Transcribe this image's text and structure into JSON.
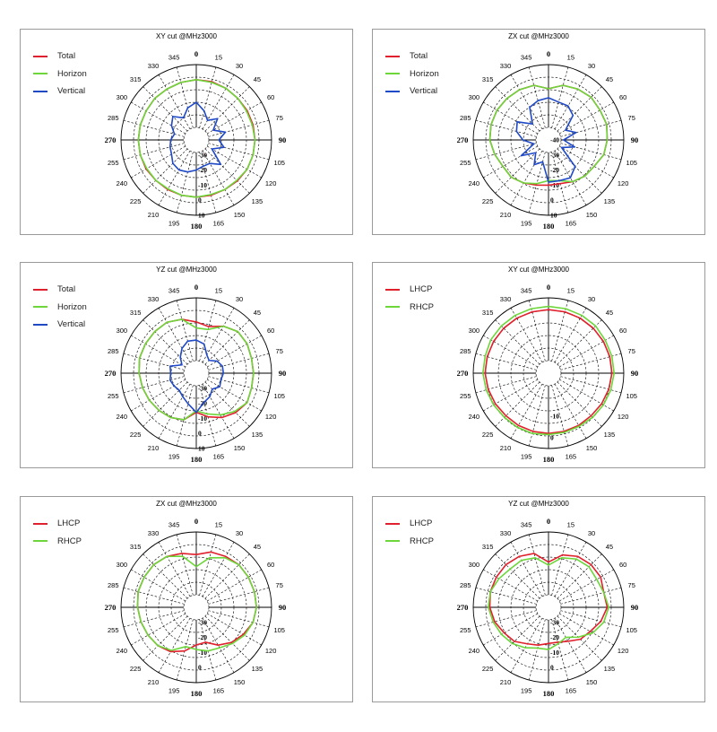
{
  "colors": {
    "Total": "#e0202c",
    "Horizon": "#6cd63a",
    "Vertical": "#1f49c6",
    "LHCP": "#e0202c",
    "RHCP": "#6cd63a"
  },
  "angle_labels": [
    "0",
    "15",
    "30",
    "45",
    "60",
    "75",
    "90",
    "105",
    "120",
    "135",
    "150",
    "165",
    "180",
    "195",
    "210",
    "225",
    "240",
    "255",
    "270",
    "285",
    "300",
    "315",
    "330",
    "345"
  ],
  "chart_data": [
    {
      "type": "polar-line",
      "title": "XY cut @MHz3000",
      "radial_ticks": [
        "-30",
        "-20",
        "-10",
        "0",
        "10"
      ],
      "rlim": [
        -40,
        10
      ],
      "angles": [
        0,
        15,
        30,
        45,
        60,
        75,
        90,
        105,
        120,
        135,
        150,
        165,
        180,
        195,
        210,
        225,
        240,
        255,
        270,
        285,
        300,
        315,
        330,
        345
      ],
      "series": [
        {
          "name": "Total",
          "values": [
            0,
            0,
            -0.5,
            -1,
            -1,
            -1,
            -1,
            -1,
            -1,
            -1.5,
            -2,
            -2,
            -2,
            -2,
            -2,
            -2,
            -1.5,
            -1.5,
            -1.5,
            -1.5,
            -1.5,
            -1,
            -1,
            -0.5
          ]
        },
        {
          "name": "Horizon",
          "values": [
            0,
            -0.5,
            -0.5,
            -1,
            -1.5,
            -1.5,
            -1,
            -1,
            -1,
            -2,
            -2,
            -2.5,
            -2,
            -2,
            -2.5,
            -2,
            -2,
            -1.5,
            -1.5,
            -1.5,
            -1.5,
            -1,
            -1,
            -0.5
          ]
        },
        {
          "name": "Vertical",
          "values": [
            -15,
            -20,
            -25,
            -20,
            -27,
            -20,
            -25,
            -21,
            -28,
            -17,
            -22,
            -22,
            -20,
            -18,
            -17,
            -18,
            -21,
            -22,
            -23,
            -25,
            -21,
            -18,
            -23,
            -18
          ]
        }
      ]
    },
    {
      "type": "polar-line",
      "title": "ZX cut @MHz3000",
      "radial_ticks": [
        "-40",
        "-30",
        "-20",
        "-10",
        "0",
        "10"
      ],
      "rlim": [
        -40,
        10
      ],
      "angles": [
        0,
        15,
        30,
        45,
        60,
        75,
        90,
        105,
        120,
        135,
        150,
        165,
        180,
        195,
        210,
        225,
        240,
        255,
        270,
        285,
        300,
        315,
        330,
        345
      ],
      "series": [
        {
          "name": "Total",
          "values": [
            -6,
            -2.5,
            -1,
            0,
            -0.5,
            0,
            -1,
            -2,
            -5,
            -6,
            -8,
            -10,
            -10,
            -9,
            -7,
            -5,
            -5,
            -3,
            -1,
            -0.5,
            -0.5,
            -1,
            -1.5,
            -2.5
          ]
        },
        {
          "name": "Horizon",
          "values": [
            -6,
            -2.5,
            -1,
            0,
            -0.5,
            0,
            -1,
            -2,
            -5,
            -6,
            -8,
            -12,
            -13,
            -10,
            -7,
            -5,
            -5,
            -3,
            -1,
            -0.5,
            -0.5,
            -1,
            -1.5,
            -2.5
          ]
        },
        {
          "name": "Vertical",
          "values": [
            -12,
            -14,
            -14,
            -17,
            -27,
            -21,
            -30,
            -22,
            -30,
            -15,
            -11,
            -12,
            -12,
            -25,
            -21,
            -28,
            -19,
            -30,
            -23,
            -18,
            -16,
            -25,
            -15,
            -13
          ]
        }
      ]
    },
    {
      "type": "polar-line",
      "title": "YZ cut @MHz3000",
      "radial_ticks": [
        "-30",
        "-20",
        "-10",
        "0",
        "10"
      ],
      "rlim": [
        -40,
        10
      ],
      "angles": [
        0,
        15,
        30,
        45,
        60,
        75,
        90,
        105,
        120,
        135,
        150,
        165,
        180,
        195,
        210,
        225,
        240,
        255,
        270,
        285,
        300,
        315,
        330,
        345
      ],
      "series": [
        {
          "name": "Total",
          "values": [
            -6,
            -8,
            -4,
            -1,
            -1,
            -2,
            -2,
            -2,
            -1,
            -3,
            -6,
            -10,
            -14,
            -8,
            -6,
            -5,
            -4,
            -3,
            -2,
            -1,
            -1,
            -1,
            -1,
            -3
          ]
        },
        {
          "name": "Horizon",
          "values": [
            -10,
            -10,
            -4,
            -1,
            -1,
            -2,
            -2,
            -2,
            -1,
            -4,
            -8,
            -12,
            -15,
            -8,
            -6,
            -5,
            -4,
            -3,
            -2,
            -1,
            -1,
            -1,
            -1,
            -3
          ]
        },
        {
          "name": "Vertical",
          "values": [
            -18,
            -20,
            -26,
            -28,
            -24,
            -22,
            -22,
            -23,
            -22,
            -25,
            -22,
            -20,
            -14,
            -19,
            -22,
            -24,
            -23,
            -22,
            -23,
            -22,
            -29,
            -25,
            -21,
            -18
          ]
        }
      ]
    },
    {
      "type": "polar-line",
      "title": "XY cut @MHz3000",
      "radial_ticks": [
        "-10",
        "0"
      ],
      "rlim": [
        -30,
        5
      ],
      "angles": [
        0,
        15,
        30,
        45,
        60,
        75,
        90,
        105,
        120,
        135,
        150,
        165,
        180,
        195,
        210,
        225,
        240,
        255,
        270,
        285,
        300,
        315,
        330,
        345
      ],
      "series": [
        {
          "name": "LHCP",
          "values": [
            -0.5,
            -0.5,
            -0.5,
            -0.5,
            -0.5,
            -0.5,
            -0.5,
            -1,
            -1.5,
            -2,
            -2,
            -2,
            -2,
            -2,
            -2,
            -2,
            -1.5,
            -1,
            -0.5,
            -0.5,
            -0.5,
            -0.5,
            -0.5,
            -0.5
          ]
        },
        {
          "name": "RHCP",
          "values": [
            1,
            1,
            1,
            1,
            0.5,
            0.5,
            0.5,
            0,
            -0.5,
            -1,
            -1.5,
            -1.5,
            -1.5,
            -1,
            -1,
            -1,
            -0.5,
            0,
            0.5,
            0.5,
            1,
            1,
            1,
            1
          ]
        }
      ]
    },
    {
      "type": "polar-line",
      "title": "ZX cut @MHz3000",
      "radial_ticks": [
        "-30",
        "-20",
        "-10",
        "0"
      ],
      "rlim": [
        -40,
        10
      ],
      "angles": [
        0,
        15,
        30,
        45,
        60,
        75,
        90,
        105,
        120,
        135,
        150,
        165,
        180,
        195,
        210,
        225,
        240,
        255,
        270,
        285,
        300,
        315,
        330,
        345
      ],
      "series": [
        {
          "name": "LHCP",
          "values": [
            -5,
            -2,
            -1,
            0,
            0,
            0,
            0,
            -1,
            -4,
            -7,
            -11,
            -16,
            -15,
            -10,
            -6,
            -4,
            -3,
            -2,
            -1,
            0,
            0,
            0,
            -1,
            -3
          ]
        },
        {
          "name": "RHCP",
          "values": [
            -13,
            -6,
            -2,
            0,
            0,
            0,
            0,
            -1,
            -3,
            -6,
            -9,
            -10,
            -12,
            -13,
            -7,
            -4,
            -3,
            -2,
            -1,
            0,
            0,
            0,
            -1,
            -5
          ]
        }
      ]
    },
    {
      "type": "polar-line",
      "title": "YZ cut @MHz3000",
      "radial_ticks": [
        "-30",
        "-20",
        "-10",
        "0"
      ],
      "rlim": [
        -40,
        10
      ],
      "angles": [
        0,
        15,
        30,
        45,
        60,
        75,
        90,
        105,
        120,
        135,
        150,
        165,
        180,
        195,
        210,
        225,
        240,
        255,
        270,
        285,
        300,
        315,
        330,
        345
      ],
      "series": [
        {
          "name": "LHCP",
          "values": [
            -10,
            -4,
            -1,
            0,
            0,
            -2,
            -1,
            -4,
            -8,
            -10,
            -14,
            -16,
            -16,
            -14,
            -12,
            -8,
            -6,
            -3,
            -1,
            0,
            0,
            0,
            -1,
            -3
          ]
        },
        {
          "name": "RHCP",
          "values": [
            -12,
            -6,
            -3,
            -2,
            -3,
            -2,
            0,
            -2,
            -6,
            -12,
            -17,
            -15,
            -12,
            -12,
            -9,
            -6,
            -4,
            -2,
            0,
            0,
            -2,
            -4,
            -4,
            -6
          ]
        }
      ]
    }
  ]
}
